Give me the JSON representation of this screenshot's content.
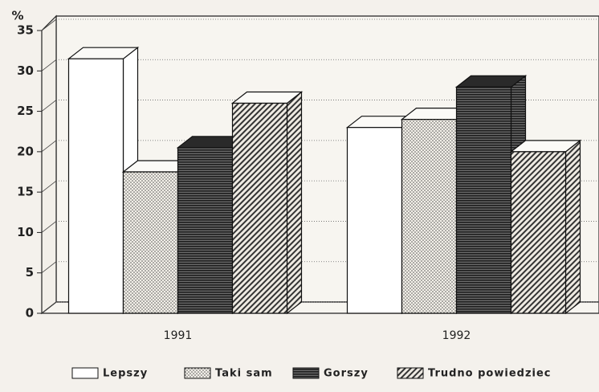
{
  "chart_data": {
    "type": "bar3d",
    "y_label": "%",
    "categories": [
      "1991",
      "1992"
    ],
    "series": [
      {
        "name": "Lepszy",
        "color": "#ffffff",
        "pattern": "none",
        "values": [
          31.5,
          23
        ]
      },
      {
        "name": "Taki sam",
        "color": "#e8e4dc",
        "pattern": "dots",
        "values": [
          17.5,
          24
        ]
      },
      {
        "name": "Gorszy",
        "color": "#3a3a3a",
        "pattern": "lines",
        "values": [
          20.5,
          28
        ]
      },
      {
        "name": "Trudno powiedziec",
        "color": "#d8d4cc",
        "pattern": "hatch",
        "values": [
          26,
          20
        ]
      }
    ],
    "ylim": [
      0,
      35
    ],
    "yticks": [
      0,
      5,
      10,
      15,
      20,
      25,
      30,
      35
    ],
    "grid": true
  }
}
